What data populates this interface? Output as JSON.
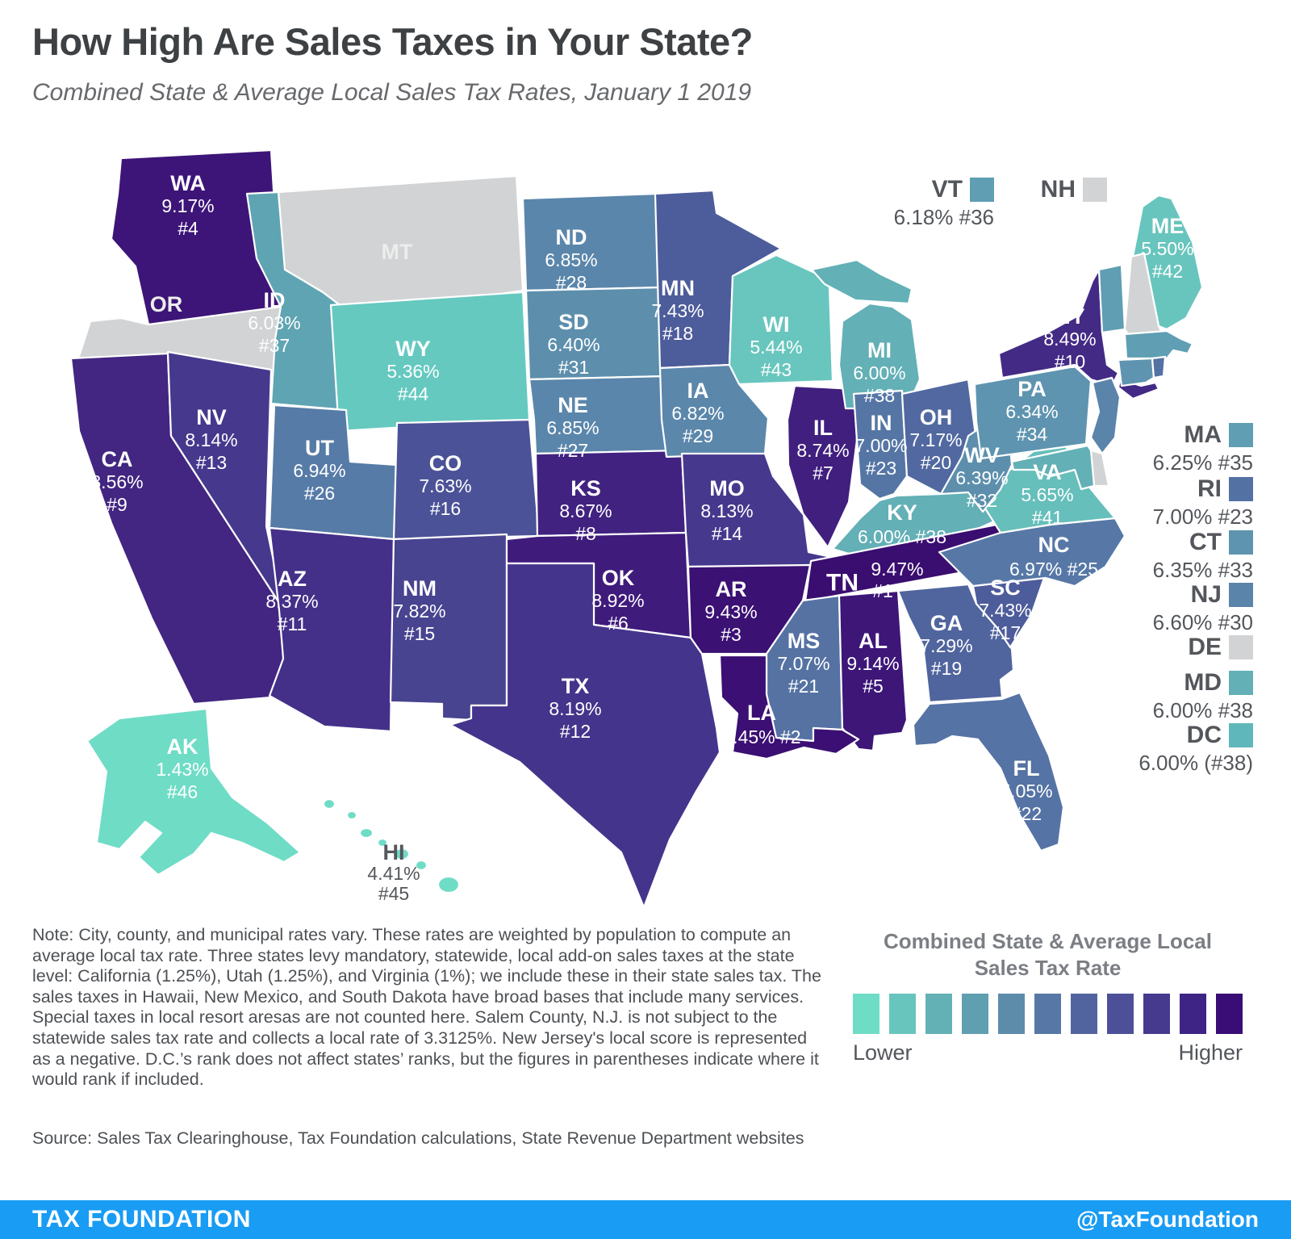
{
  "header": {
    "title": "How High Are Sales Taxes in Your State?",
    "subtitle": "Combined State & Average Local Sales Tax Rates, January 1 2019"
  },
  "map": {
    "no_data_color": "#d2d3d5",
    "states": [
      {
        "abbr": "TN",
        "rate": "9.47%",
        "rank": "#1",
        "color": "#3a0d70"
      },
      {
        "abbr": "LA",
        "rate": "9.45%",
        "rank": "#2",
        "color": "#3b0f73"
      },
      {
        "abbr": "AR",
        "rate": "9.43%",
        "rank": "#3",
        "color": "#3b1174"
      },
      {
        "abbr": "WA",
        "rate": "9.17%",
        "rank": "#4",
        "color": "#3d1578"
      },
      {
        "abbr": "AL",
        "rate": "9.14%",
        "rank": "#5",
        "color": "#3d1678"
      },
      {
        "abbr": "OK",
        "rate": "8.92%",
        "rank": "#6",
        "color": "#3f1b7c"
      },
      {
        "abbr": "IL",
        "rate": "8.74%",
        "rank": "#7",
        "color": "#401f7e"
      },
      {
        "abbr": "KS",
        "rate": "8.67%",
        "rank": "#8",
        "color": "#412280"
      },
      {
        "abbr": "CA",
        "rate": "8.56%",
        "rank": "#9",
        "color": "#422681"
      },
      {
        "abbr": "NY",
        "rate": "8.49%",
        "rank": "#10",
        "color": "#432a85"
      },
      {
        "abbr": "AZ",
        "rate": "8.37%",
        "rank": "#11",
        "color": "#443089"
      },
      {
        "abbr": "TX",
        "rate": "8.19%",
        "rank": "#12",
        "color": "#45348b"
      },
      {
        "abbr": "NV",
        "rate": "8.14%",
        "rank": "#13",
        "color": "#46388d"
      },
      {
        "abbr": "MO",
        "rate": "8.13%",
        "rank": "#14",
        "color": "#46388d"
      },
      {
        "abbr": "NM",
        "rate": "7.82%",
        "rank": "#15",
        "color": "#484490"
      },
      {
        "abbr": "CO",
        "rate": "7.63%",
        "rank": "#16",
        "color": "#4b5297"
      },
      {
        "abbr": "SC",
        "rate": "7.43%",
        "rank": "#17",
        "color": "#4d5c9a"
      },
      {
        "abbr": "MN",
        "rate": "7.43%",
        "rank": "#18",
        "color": "#4d5c9a"
      },
      {
        "abbr": "GA",
        "rate": "7.29%",
        "rank": "#19",
        "color": "#50649e"
      },
      {
        "abbr": "OH",
        "rate": "7.17%",
        "rank": "#20",
        "color": "#5169a0"
      },
      {
        "abbr": "MS",
        "rate": "7.07%",
        "rank": "#21",
        "color": "#5572a3"
      },
      {
        "abbr": "FL",
        "rate": "7.05%",
        "rank": "#22",
        "color": "#5573a4"
      },
      {
        "abbr": "IN",
        "rate": "7.00%",
        "rank": "#23",
        "color": "#5576a5"
      },
      {
        "abbr": "RI",
        "rate": "7.00%",
        "rank": "#23",
        "color": "#5471a3"
      },
      {
        "abbr": "NC",
        "rate": "6.97%",
        "rank": "#25",
        "color": "#5778a6"
      },
      {
        "abbr": "UT",
        "rate": "6.94%",
        "rank": "#26",
        "color": "#577ba7"
      },
      {
        "abbr": "NE",
        "rate": "6.85%",
        "rank": "#27",
        "color": "#5b86ab"
      },
      {
        "abbr": "ND",
        "rate": "6.85%",
        "rank": "#28",
        "color": "#5b86ab"
      },
      {
        "abbr": "IA",
        "rate": "6.82%",
        "rank": "#29",
        "color": "#5b87ab"
      },
      {
        "abbr": "NJ",
        "rate": "6.60%",
        "rank": "#30",
        "color": "#5a84aa"
      },
      {
        "abbr": "SD",
        "rate": "6.40%",
        "rank": "#31",
        "color": "#5d8fad"
      },
      {
        "abbr": "WV",
        "rate": "6.39%",
        "rank": "#32",
        "color": "#5d8fad"
      },
      {
        "abbr": "CT",
        "rate": "6.35%",
        "rank": "#33",
        "color": "#5e94af"
      },
      {
        "abbr": "PA",
        "rate": "6.34%",
        "rank": "#34",
        "color": "#5e94af"
      },
      {
        "abbr": "MA",
        "rate": "6.25%",
        "rank": "#35",
        "color": "#5f9eb3"
      },
      {
        "abbr": "VT",
        "rate": "6.18%",
        "rank": "#36",
        "color": "#5f9eb3"
      },
      {
        "abbr": "ID",
        "rate": "6.03%",
        "rank": "#37",
        "color": "#5fa4b2"
      },
      {
        "abbr": "KY",
        "rate": "6.00%",
        "rank": "#38",
        "color": "#63b0b6"
      },
      {
        "abbr": "MI",
        "rate": "6.00%",
        "rank": "#38",
        "color": "#63b0b6"
      },
      {
        "abbr": "MD",
        "rate": "6.00%",
        "rank": "#38",
        "color": "#63b0b6"
      },
      {
        "abbr": "DC",
        "rate": "6.00%",
        "rank": "(#38)",
        "color": "#5fb7bb"
      },
      {
        "abbr": "VA",
        "rate": "5.65%",
        "rank": "#41",
        "color": "#66bfbb"
      },
      {
        "abbr": "ME",
        "rate": "5.50%",
        "rank": "#42",
        "color": "#68c5bd"
      },
      {
        "abbr": "WI",
        "rate": "5.44%",
        "rank": "#43",
        "color": "#68c6be"
      },
      {
        "abbr": "WY",
        "rate": "5.36%",
        "rank": "#44",
        "color": "#65c9c0"
      },
      {
        "abbr": "HI",
        "rate": "4.41%",
        "rank": "#45",
        "color": "#6fdcc6"
      },
      {
        "abbr": "AK",
        "rate": "1.43%",
        "rank": "#46",
        "color": "#6fdcc6"
      },
      {
        "abbr": "OR",
        "rate": "",
        "rank": "",
        "color": ""
      },
      {
        "abbr": "MT",
        "rate": "",
        "rank": "",
        "color": ""
      },
      {
        "abbr": "NH",
        "rate": "",
        "rank": "",
        "color": ""
      },
      {
        "abbr": "DE",
        "rate": "",
        "rank": "",
        "color": ""
      }
    ]
  },
  "callouts": {
    "top": [
      "VT",
      "NH"
    ],
    "right": [
      "MA",
      "RI",
      "CT",
      "NJ",
      "DE",
      "MD",
      "DC"
    ]
  },
  "legend": {
    "title_line1": "Combined State & Average Local",
    "title_line2": "Sales Tax Rate",
    "lower_label": "Lower",
    "higher_label": "Higher",
    "palette": [
      "#6fdcc6",
      "#68c5bd",
      "#64b1b5",
      "#5f9fb0",
      "#5d8cab",
      "#5778a6",
      "#52649f",
      "#4d5099",
      "#453a8e",
      "#3e2484",
      "#3a0d76"
    ]
  },
  "notes": {
    "note": "Note: City, county, and municipal rates vary. These rates are weighted by population to compute an average local tax rate. Three states levy mandatory, statewide, local add-on sales taxes at the state level: California (1.25%), Utah (1.25%), and Virginia (1%); we include these in their state sales tax. The sales taxes in Hawaii, New Mexico, and South Dakota have broad bases that include many services. Special taxes in local resort aresas are not counted here. Salem County, N.J. is not subject to the statewide sales tax rate and collects a local rate of 3.3125%. New Jersey's local score is represented as a negative. D.C.’s rank does not affect states’ ranks, but the figures in parentheses indicate where it would rank if included.",
    "source": "Source: Sales Tax Clearinghouse, Tax Foundation calculations, State Revenue Department websites"
  },
  "footer": {
    "brand": "TAX FOUNDATION",
    "handle": "@TaxFoundation",
    "background": "#199cf4"
  }
}
